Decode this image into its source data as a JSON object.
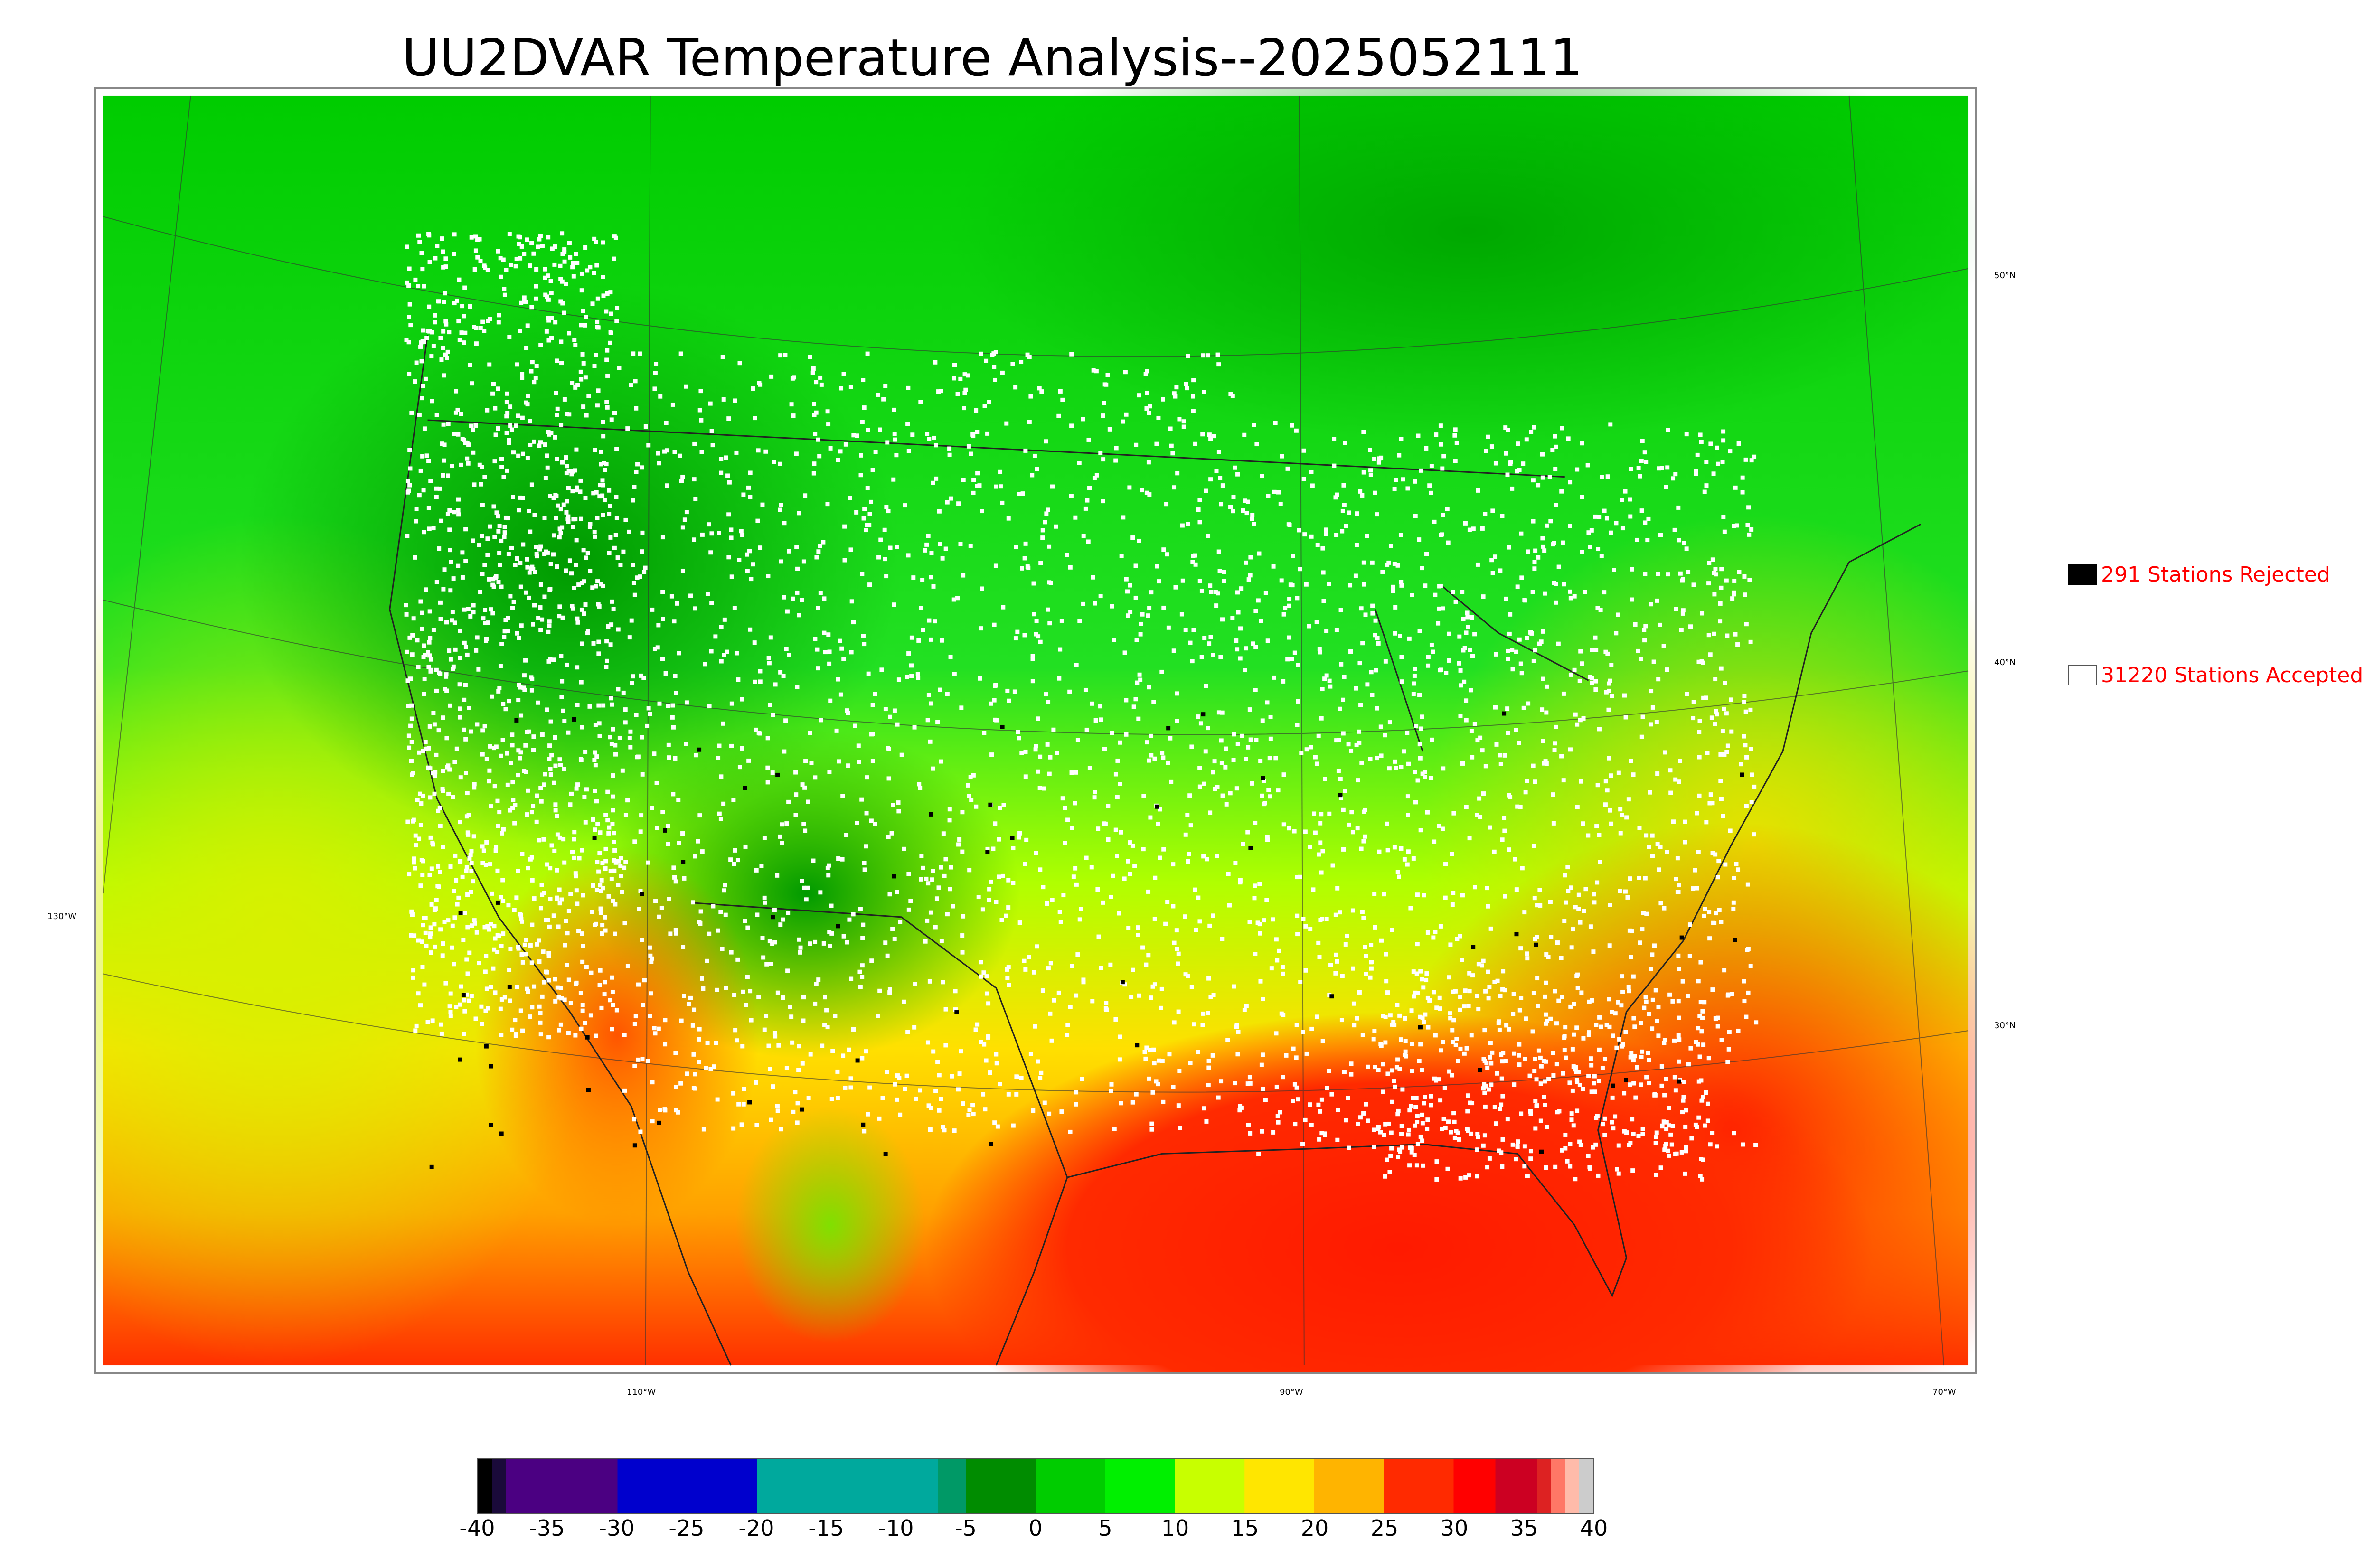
{
  "title": "UU2DVAR Temperature Analysis--2025052111",
  "map": {
    "lon_labels": [
      "110°W",
      "90°W",
      "70°W"
    ],
    "lat_labels_right": [
      "50°N",
      "40°N",
      "30°N"
    ],
    "lat_labels_left": [
      "130°W"
    ]
  },
  "legend": {
    "rejected": {
      "label": "291 Stations Rejected",
      "swatch_color": "#000000"
    },
    "accepted": {
      "label": "31220 Stations Accepted",
      "swatch_color": "#ffffff"
    },
    "text_color": "#ff0000"
  },
  "colorbar": {
    "min": -40,
    "max": 40,
    "tick_labels": [
      "-40",
      "-35",
      "-30",
      "-25",
      "-20",
      "-15",
      "-10",
      "-5",
      "0",
      "5",
      "10",
      "15",
      "20",
      "25",
      "30",
      "35",
      "40"
    ],
    "colors": [
      {
        "from": -40,
        "to": -39,
        "color": "#000000"
      },
      {
        "from": -39,
        "to": -38,
        "color": "#1a0a3a"
      },
      {
        "from": -38,
        "to": -30,
        "color": "#4b0082"
      },
      {
        "from": -30,
        "to": -20,
        "color": "#0000cd"
      },
      {
        "from": -20,
        "to": -7,
        "color": "#00a99d"
      },
      {
        "from": -7,
        "to": -5,
        "color": "#009966"
      },
      {
        "from": -5,
        "to": 0,
        "color": "#008c00"
      },
      {
        "from": 0,
        "to": 5,
        "color": "#00cc00"
      },
      {
        "from": 5,
        "to": 10,
        "color": "#00f000"
      },
      {
        "from": 10,
        "to": 15,
        "color": "#c8ff00"
      },
      {
        "from": 15,
        "to": 20,
        "color": "#ffe600"
      },
      {
        "from": 20,
        "to": 25,
        "color": "#ffb400"
      },
      {
        "from": 25,
        "to": 30,
        "color": "#ff2a00"
      },
      {
        "from": 30,
        "to": 33,
        "color": "#ff0000"
      },
      {
        "from": 33,
        "to": 36,
        "color": "#cc0022"
      },
      {
        "from": 36,
        "to": 37,
        "color": "#dd2222"
      },
      {
        "from": 37,
        "to": 38,
        "color": "#ff7766"
      },
      {
        "from": 38,
        "to": 39,
        "color": "#ffbbaa"
      },
      {
        "from": 39,
        "to": 40,
        "color": "#cccccc"
      }
    ]
  }
}
